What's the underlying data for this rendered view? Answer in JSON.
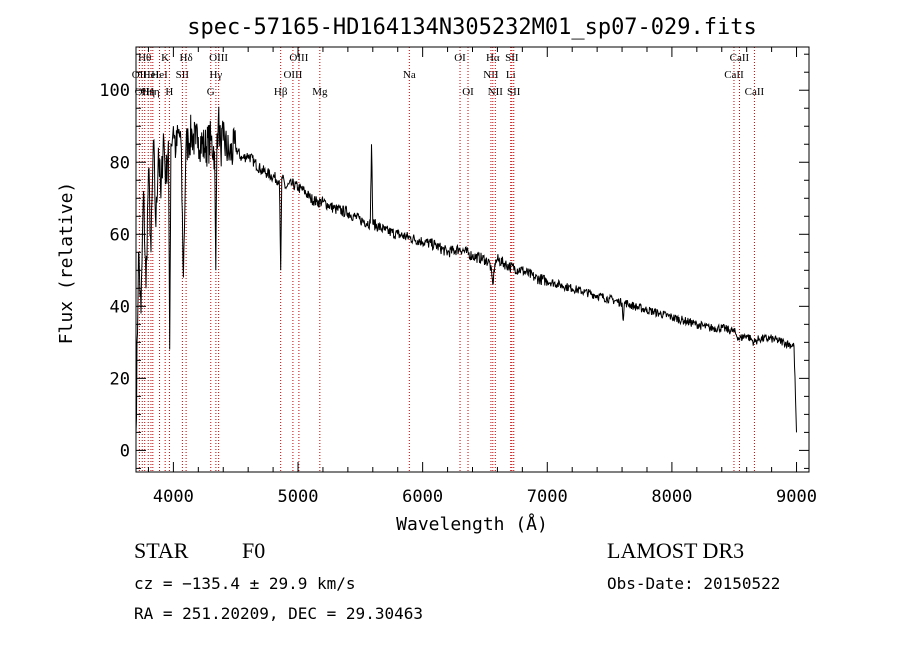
{
  "chart_data": {
    "type": "line",
    "title": "spec-57165-HD164134N305232M01_sp07-029.fits",
    "xlabel": "Wavelength (Å)",
    "ylabel": "Flux (relative)",
    "xlim": [
      3700,
      9100
    ],
    "ylim": [
      -6,
      112
    ],
    "xticks": [
      4000,
      5000,
      6000,
      7000,
      8000,
      9000
    ],
    "yticks": [
      0,
      20,
      40,
      60,
      80,
      100
    ],
    "grid": false,
    "series": [
      {
        "name": "spectrum",
        "x": [
          3700,
          3720,
          3740,
          3760,
          3780,
          3800,
          3820,
          3840,
          3860,
          3880,
          3900,
          3920,
          3940,
          3960,
          3970,
          3980,
          4000,
          4020,
          4040,
          4060,
          4080,
          4100,
          4120,
          4150,
          4180,
          4200,
          4250,
          4300,
          4330,
          4340,
          4350,
          4360,
          4380,
          4400,
          4450,
          4500,
          4550,
          4600,
          4650,
          4700,
          4750,
          4800,
          4850,
          4861,
          4870,
          4900,
          4950,
          5000,
          5050,
          5100,
          5150,
          5200,
          5250,
          5300,
          5400,
          5500,
          5580,
          5590,
          5600,
          5700,
          5800,
          5900,
          6000,
          6100,
          6200,
          6300,
          6400,
          6500,
          6540,
          6563,
          6580,
          6600,
          6700,
          6800,
          6900,
          7000,
          7100,
          7200,
          7300,
          7400,
          7500,
          7600,
          7610,
          7620,
          7700,
          7800,
          7900,
          8000,
          8100,
          8200,
          8300,
          8400,
          8500,
          8540,
          8600,
          8660,
          8700,
          8800,
          8900,
          8980,
          9000
        ],
        "values": [
          5,
          55,
          38,
          72,
          45,
          78,
          55,
          86,
          62,
          84,
          70,
          88,
          75,
          86,
          28,
          85,
          90,
          83,
          88,
          86,
          48,
          84,
          86,
          88,
          85,
          87,
          84,
          86,
          83,
          50,
          88,
          92,
          84,
          86,
          82,
          84,
          81,
          82,
          80,
          78,
          77,
          76,
          75,
          50,
          76,
          73,
          74,
          73,
          72,
          70,
          69,
          69,
          68,
          67,
          66,
          64,
          63,
          85,
          63,
          61,
          60,
          59,
          58,
          57,
          55,
          56,
          54,
          53,
          52,
          46,
          52,
          53,
          51,
          50,
          48,
          47,
          46,
          45,
          44,
          43,
          42,
          41,
          36,
          41,
          40,
          39,
          38,
          37,
          36,
          35,
          34,
          34,
          33,
          31,
          32,
          30,
          31,
          31,
          30,
          29,
          5
        ]
      }
    ],
    "lines": [
      {
        "wl": 3727,
        "label": "OII",
        "row": 2
      },
      {
        "wl": 3750,
        "label": "OII",
        "row": 3
      },
      {
        "wl": 3770,
        "label": "Hθ",
        "row": 1
      },
      {
        "wl": 3798,
        "label": "Hη",
        "row": 3
      },
      {
        "wl": 3820,
        "label": "HeI",
        "row": 2
      },
      {
        "wl": 3835,
        "label": "Hη",
        "row": 3
      },
      {
        "wl": 3889,
        "label": "HeI",
        "row": 2
      },
      {
        "wl": 3934,
        "label": "K",
        "row": 1
      },
      {
        "wl": 3968,
        "label": "H",
        "row": 3
      },
      {
        "wl": 4072,
        "label": "SII",
        "row": 2
      },
      {
        "wl": 4102,
        "label": "Hδ",
        "row": 1
      },
      {
        "wl": 4300,
        "label": "G",
        "row": 3
      },
      {
        "wl": 4341,
        "label": "Hγ",
        "row": 2
      },
      {
        "wl": 4363,
        "label": "OIII",
        "row": 1
      },
      {
        "wl": 4861,
        "label": "Hβ",
        "row": 3
      },
      {
        "wl": 4959,
        "label": "OIII",
        "row": 2
      },
      {
        "wl": 5007,
        "label": "OIII",
        "row": 1
      },
      {
        "wl": 5175,
        "label": "Mg",
        "row": 3
      },
      {
        "wl": 5893,
        "label": "Na",
        "row": 2
      },
      {
        "wl": 6300,
        "label": "OI",
        "row": 1
      },
      {
        "wl": 6364,
        "label": "OI",
        "row": 3
      },
      {
        "wl": 6548,
        "label": "NII",
        "row": 2
      },
      {
        "wl": 6563,
        "label": "Hα",
        "row": 1
      },
      {
        "wl": 6583,
        "label": "NII",
        "row": 3
      },
      {
        "wl": 6707,
        "label": "Li",
        "row": 2
      },
      {
        "wl": 6716,
        "label": "SII",
        "row": 1
      },
      {
        "wl": 6731,
        "label": "SII",
        "row": 3
      },
      {
        "wl": 8498,
        "label": "CaII",
        "row": 2
      },
      {
        "wl": 8542,
        "label": "CaII",
        "row": 1
      },
      {
        "wl": 8662,
        "label": "CaII",
        "row": 3
      }
    ]
  },
  "info": {
    "class": "STAR",
    "subclass": "F0",
    "survey": "LAMOST DR3",
    "cz": "cz = −135.4 ± 29.9 km/s",
    "obs_date": "Obs-Date: 20150522",
    "coords": "RA = 251.20209, DEC =  29.30463"
  }
}
